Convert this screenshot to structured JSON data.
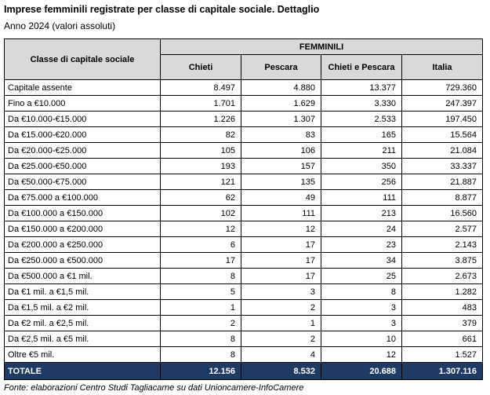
{
  "title": "Imprese femminili registrate per classe di capitale sociale. Dettaglio",
  "subtitle": "Anno 2024 (valori assoluti)",
  "table": {
    "row_header": "Classe di capitale sociale",
    "group_header": "FEMMINILI",
    "columns": [
      "Chieti",
      "Pescara",
      "Chieti e Pescara",
      "Italia"
    ],
    "rows": [
      {
        "label": "Capitale assente",
        "values": [
          "8.497",
          "4.880",
          "13.377",
          "729.360"
        ]
      },
      {
        "label": "Fino a €10.000",
        "values": [
          "1.701",
          "1.629",
          "3.330",
          "247.397"
        ]
      },
      {
        "label": "Da €10.000-€15.000",
        "values": [
          "1.226",
          "1.307",
          "2.533",
          "197.450"
        ]
      },
      {
        "label": "Da €15.000-€20.000",
        "values": [
          "82",
          "83",
          "165",
          "15.564"
        ]
      },
      {
        "label": "Da €20.000-€25.000",
        "values": [
          "105",
          "106",
          "211",
          "21.084"
        ]
      },
      {
        "label": "Da €25.000-€50.000",
        "values": [
          "193",
          "157",
          "350",
          "33.337"
        ]
      },
      {
        "label": "Da €50.000-€75.000",
        "values": [
          "121",
          "135",
          "256",
          "21.887"
        ]
      },
      {
        "label": "Da €75.000 a €100.000",
        "values": [
          "62",
          "49",
          "111",
          "8.877"
        ]
      },
      {
        "label": "Da €100.000 a €150.000",
        "values": [
          "102",
          "111",
          "213",
          "16.560"
        ]
      },
      {
        "label": "Da €150.000 a €200.000",
        "values": [
          "12",
          "12",
          "24",
          "2.577"
        ]
      },
      {
        "label": "Da €200.000 a €250.000",
        "values": [
          "6",
          "17",
          "23",
          "2.143"
        ]
      },
      {
        "label": "Da €250.000 a €500.000",
        "values": [
          "17",
          "17",
          "34",
          "3.875"
        ]
      },
      {
        "label": "Da €500.000 a €1 mil.",
        "values": [
          "8",
          "17",
          "25",
          "2.673"
        ]
      },
      {
        "label": "Da €1 mil. a €1,5 mil.",
        "values": [
          "5",
          "3",
          "8",
          "1.282"
        ]
      },
      {
        "label": "Da €1,5 mil. a €2 mil.",
        "values": [
          "1",
          "2",
          "3",
          "483"
        ]
      },
      {
        "label": "Da €2 mil. a €2,5 mil.",
        "values": [
          "2",
          "1",
          "3",
          "379"
        ]
      },
      {
        "label": "Da €2,5 mil. a €5 mil.",
        "values": [
          "8",
          "2",
          "10",
          "661"
        ]
      },
      {
        "label": "Oltre €5 mil.",
        "values": [
          "8",
          "4",
          "12",
          "1.527"
        ]
      }
    ],
    "total": {
      "label": "TOTALE",
      "values": [
        "12.156",
        "8.532",
        "20.688",
        "1.307.116"
      ]
    }
  },
  "footer": "Fonte: elaborazioni Centro Studi Tagliacarne su dati Unioncamere-InfoCamere",
  "colors": {
    "header_bg": "#d9d9d9",
    "total_bg": "#1f3b63",
    "total_text": "#ffffff",
    "border": "#000000"
  }
}
